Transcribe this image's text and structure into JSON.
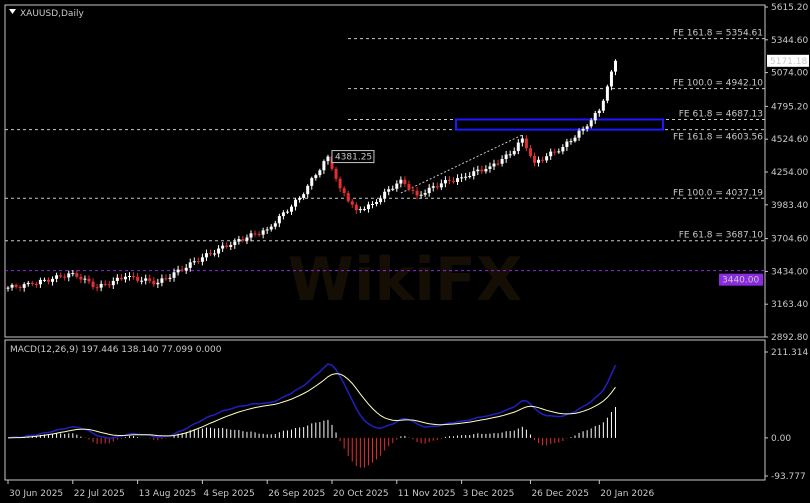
{
  "window": {
    "title": "XAUUSD,Daily"
  },
  "watermark": "WikiFX",
  "chart_data": [
    {
      "type": "candlestick",
      "title": "XAUUSD,Daily",
      "ylim": [
        2892.8,
        5615.2
      ],
      "y_ticks": [
        "5615.20",
        "5344.60",
        "5074.00",
        "4795.20",
        "4524.60",
        "4254.00",
        "3983.40",
        "3704.60",
        "3434.00",
        "3163.40",
        "2892.80"
      ],
      "x_ticks": [
        "30 Jun 2025",
        "22 Jul 2025",
        "13 Aug 2025",
        "4 Sep 2025",
        "26 Sep 2025",
        "20 Oct 2025",
        "11 Nov 2025",
        "3 Dec 2025",
        "26 Dec 2025",
        "20 Jan 2026"
      ],
      "close_path": [
        {
          "x": "30 Jun 2025",
          "y": 3300
        },
        {
          "x": "8 Jul 2025",
          "y": 3330
        },
        {
          "x": "22 Jul 2025",
          "y": 3420
        },
        {
          "x": "30 Jul 2025",
          "y": 3300
        },
        {
          "x": "8 Aug 2025",
          "y": 3390
        },
        {
          "x": "20 Aug 2025",
          "y": 3340
        },
        {
          "x": "4 Sep 2025",
          "y": 3550
        },
        {
          "x": "16 Sep 2025",
          "y": 3680
        },
        {
          "x": "26 Sep 2025",
          "y": 3780
        },
        {
          "x": "8 Oct 2025",
          "y": 4040
        },
        {
          "x": "17 Oct 2025",
          "y": 4381.25
        },
        {
          "x": "22 Oct 2025",
          "y": 4120
        },
        {
          "x": "28 Oct 2025",
          "y": 3940
        },
        {
          "x": "3 Nov 2025",
          "y": 3990
        },
        {
          "x": "12 Nov 2025",
          "y": 4190
        },
        {
          "x": "18 Nov 2025",
          "y": 4060
        },
        {
          "x": "26 Nov 2025",
          "y": 4160
        },
        {
          "x": "3 Dec 2025",
          "y": 4210
        },
        {
          "x": "12 Dec 2025",
          "y": 4300
        },
        {
          "x": "19 Dec 2025",
          "y": 4400
        },
        {
          "x": "24 Dec 2025",
          "y": 4530
        },
        {
          "x": "29 Dec 2025",
          "y": 4330
        },
        {
          "x": "7 Jan 2026",
          "y": 4460
        },
        {
          "x": "14 Jan 2026",
          "y": 4610
        },
        {
          "x": "20 Jan 2026",
          "y": 4760
        },
        {
          "x": "22 Jan 2026",
          "y": 4960
        },
        {
          "x": "26 Jan 2026",
          "y": 5171.18
        }
      ],
      "current_price": "5171.18",
      "peak_label": "4381.25",
      "level_label": "3440.00",
      "level_value": 3440.0,
      "fib_lines": [
        {
          "label": "FE 161.8 = 5354.61",
          "value": 5354.61
        },
        {
          "label": "FE 100.0 = 4942.10",
          "value": 4942.1
        },
        {
          "label": "FE 61.8 = 4687.13",
          "value": 4687.13
        },
        {
          "label": "FE 161.8 = 4603.56",
          "value": 4603.56
        },
        {
          "label": "FE 100.0 = 4037.19",
          "value": 4037.19
        },
        {
          "label": "FE 61.8 = 3687.10",
          "value": 3687.1
        }
      ],
      "zone": {
        "from": 4603.56,
        "to": 4687.13,
        "color": "#1a1aff"
      },
      "colors": {
        "bull": "#ffffff",
        "bear": "#e03030",
        "background": "#000000",
        "grid": "#c8c8c8"
      }
    },
    {
      "type": "macd",
      "label": "MACD(12,26,9) 197.446 138.140 77.099 0.000",
      "params": [
        12,
        26,
        9
      ],
      "ylim": [
        -93.777,
        211.314
      ],
      "y_ticks": [
        "211.314",
        "0.00",
        "-93.777"
      ],
      "colors": {
        "macd": "#2020c0",
        "signal": "#ffffc0",
        "hist_pos": "#ffffff",
        "hist_neg": "#e03030"
      }
    }
  ]
}
